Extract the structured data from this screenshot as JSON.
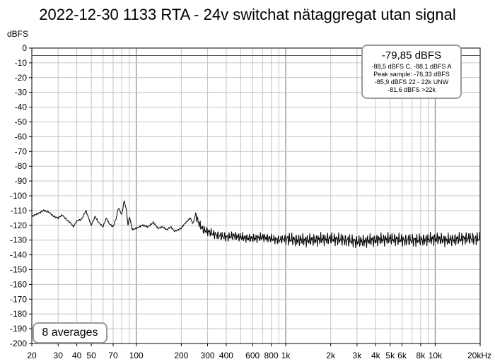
{
  "chart_data": {
    "type": "line",
    "title": "2022-12-30 1133 RTA - 24v switchat nätaggregat utan signal",
    "ylabel": "dBFS",
    "xlabel": "",
    "x_scale": "log",
    "xlim": [
      20,
      20000
    ],
    "ylim": [
      -200,
      0
    ],
    "y_ticks": [
      "0",
      "-10",
      "-20",
      "-30",
      "-40",
      "-50",
      "-60",
      "-70",
      "-80",
      "-90",
      "-100",
      "-110",
      "-120",
      "-130",
      "-140",
      "-150",
      "-160",
      "-170",
      "-180",
      "-190",
      "-200"
    ],
    "x_ticks": [
      {
        "v": 20,
        "label": "20"
      },
      {
        "v": 30,
        "label": "30"
      },
      {
        "v": 40,
        "label": "40"
      },
      {
        "v": 50,
        "label": "50"
      },
      {
        "v": 70,
        "label": "70"
      },
      {
        "v": 100,
        "label": "100"
      },
      {
        "v": 200,
        "label": "200"
      },
      {
        "v": 300,
        "label": "300"
      },
      {
        "v": 400,
        "label": "400"
      },
      {
        "v": 600,
        "label": "600"
      },
      {
        "v": 800,
        "label": "800"
      },
      {
        "v": 1000,
        "label": "1k"
      },
      {
        "v": 2000,
        "label": "2k"
      },
      {
        "v": 3000,
        "label": "3k"
      },
      {
        "v": 4000,
        "label": "4k"
      },
      {
        "v": 5000,
        "label": "5k"
      },
      {
        "v": 6000,
        "label": "6k"
      },
      {
        "v": 8000,
        "label": "8k"
      },
      {
        "v": 10000,
        "label": "10k"
      },
      {
        "v": 20000,
        "label": "20kHz"
      }
    ],
    "grid": true,
    "reference_line": {
      "y": -5,
      "color": "#4a4ac8"
    },
    "series": [
      {
        "color": "#000000",
        "x": [
          20,
          22,
          24,
          26,
          28,
          30,
          32,
          34,
          36,
          38,
          40,
          43,
          46,
          50,
          53,
          56,
          60,
          63,
          66,
          70,
          73,
          76,
          80,
          83,
          86,
          88,
          90,
          94,
          100,
          110,
          120,
          130,
          140,
          150,
          160,
          170,
          180,
          190,
          200,
          210,
          220,
          230,
          240,
          250,
          260,
          280,
          300,
          330,
          360,
          400,
          450,
          500,
          600,
          700,
          800,
          900,
          1000,
          1200,
          1500,
          2000,
          2500,
          3000,
          4000,
          5000,
          6000,
          8000,
          10000,
          12000,
          15000,
          20000
        ],
        "y": [
          -114,
          -112,
          -110,
          -111,
          -114,
          -115,
          -113,
          -116,
          -118,
          -121,
          -117,
          -116,
          -110,
          -120,
          -114,
          -118,
          -121,
          -115,
          -119,
          -121,
          -116,
          -108,
          -113,
          -103,
          -110,
          -120,
          -114,
          -123,
          -122,
          -120,
          -121,
          -118,
          -122,
          -121,
          -123,
          -121,
          -124,
          -123,
          -122,
          -119,
          -117,
          -115,
          -119,
          -112,
          -118,
          -123,
          -124,
          -126,
          -127,
          -128,
          -127,
          -128,
          -129,
          -128,
          -129,
          -130,
          -129,
          -130,
          -130,
          -129,
          -130,
          -131,
          -130,
          -129,
          -130,
          -130,
          -129,
          -130,
          -129,
          -129
        ]
      }
    ]
  },
  "info": {
    "main": "-79,85 dBFS",
    "lines": [
      "-88,5 dBFS C, -88,1 dBFS A",
      "Peak sample: -76,33 dBFS",
      "-85,9 dBFS 22 - 22k UNW",
      "-81,6 dBFS >22k"
    ]
  },
  "averages_label": "8 averages"
}
